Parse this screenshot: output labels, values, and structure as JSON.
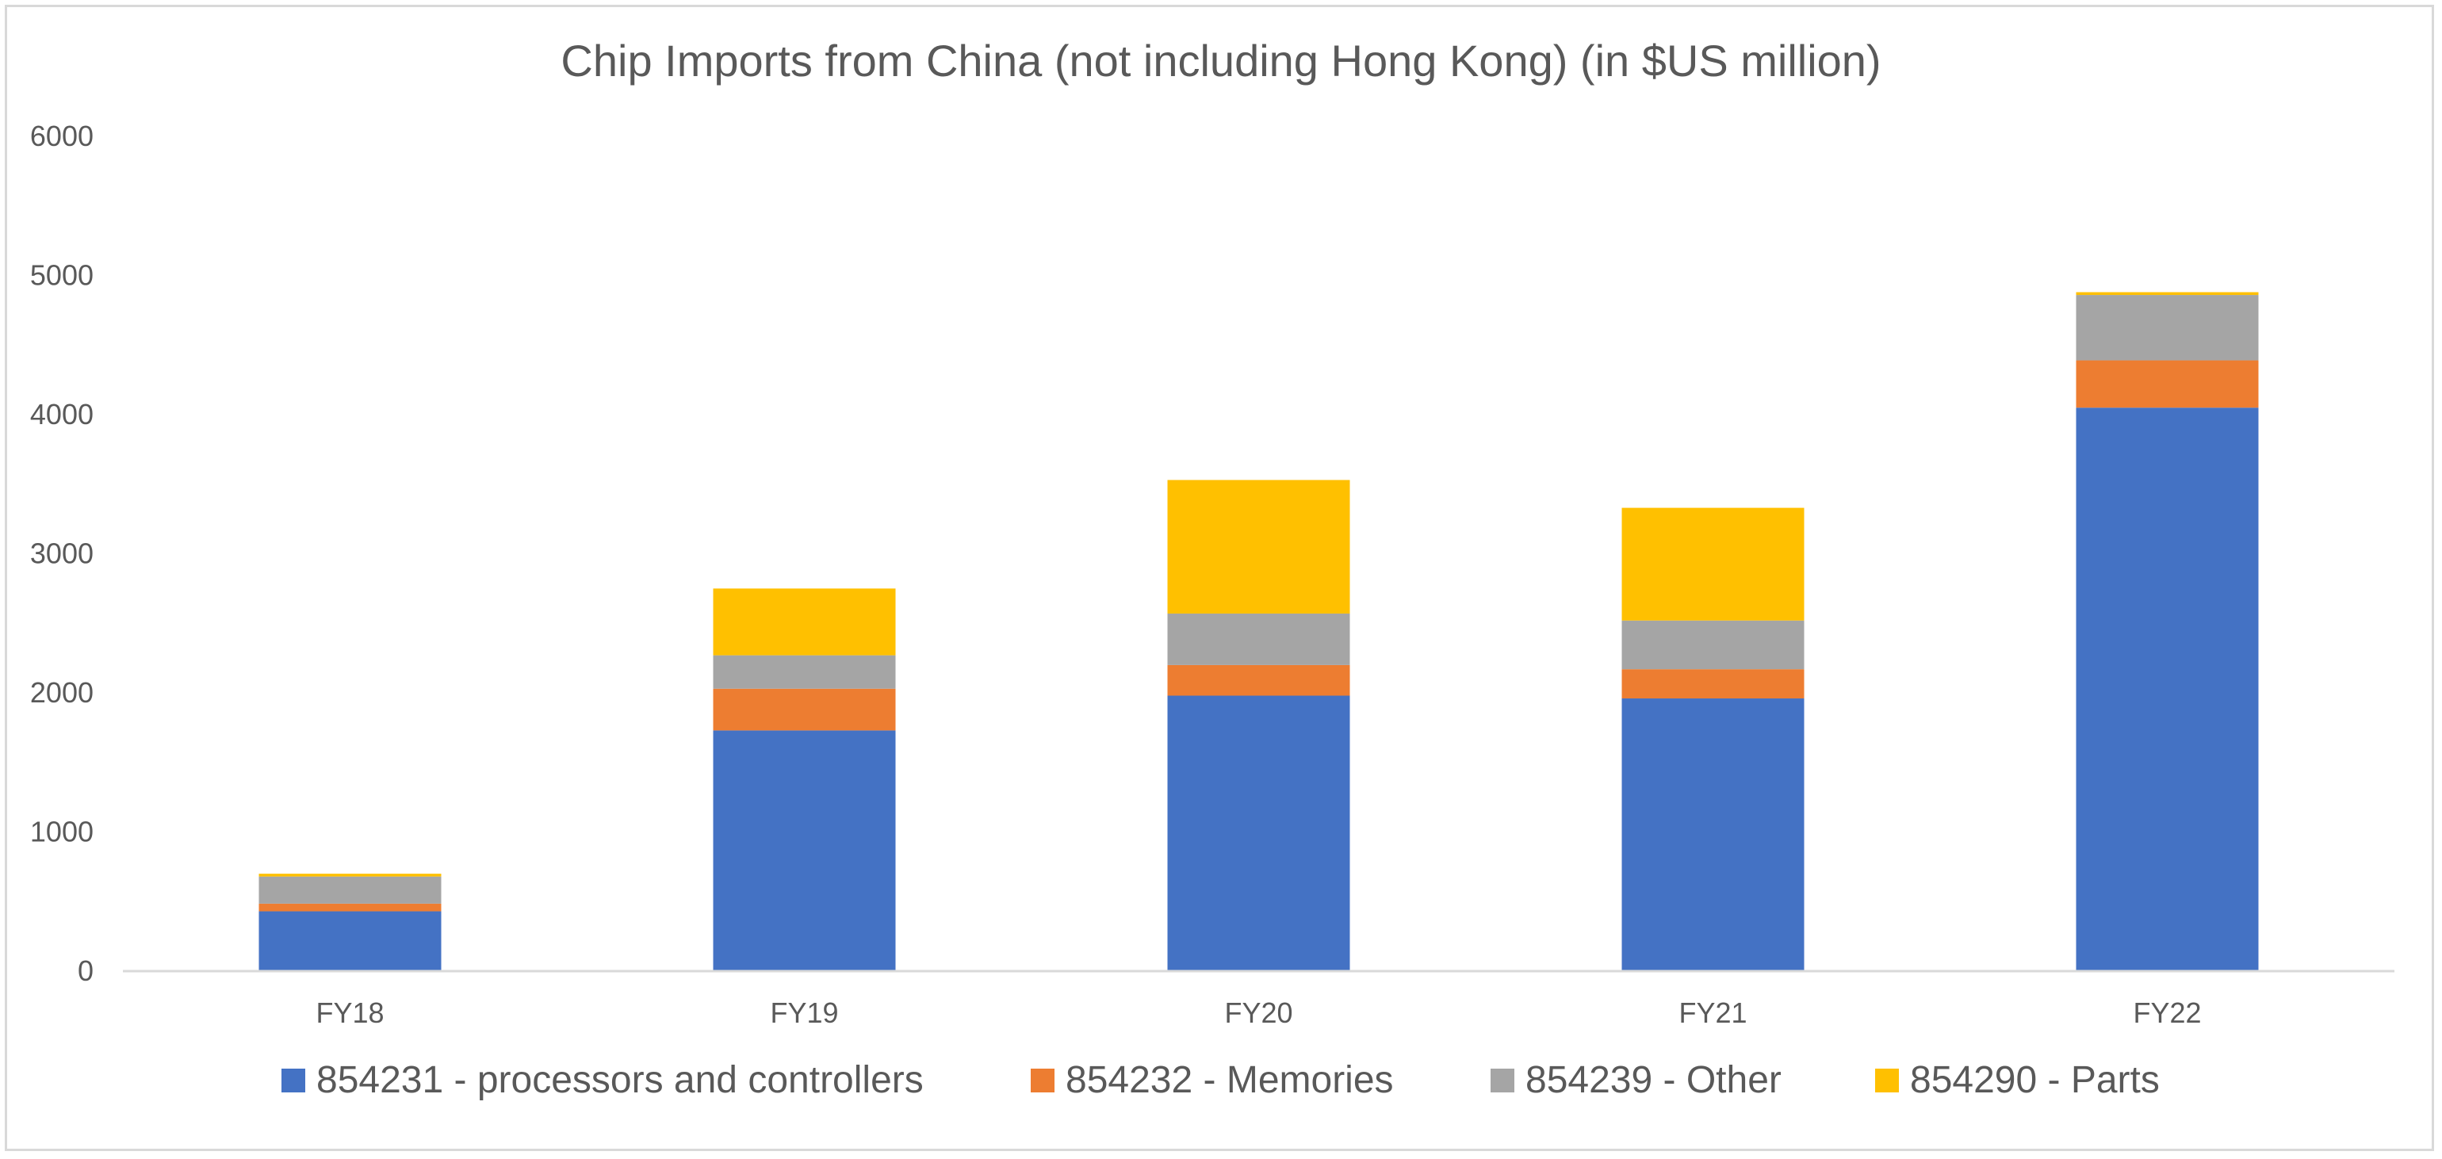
{
  "chart_data": {
    "type": "bar",
    "stacked": true,
    "title": "Chip Imports from China (not including Hong Kong) (in $US million)",
    "xlabel": "",
    "ylabel": "",
    "categories": [
      "FY18",
      "FY19",
      "FY20",
      "FY21",
      "FY22"
    ],
    "ylim": [
      0,
      6000
    ],
    "yticks": [
      0,
      1000,
      2000,
      3000,
      4000,
      5000,
      6000
    ],
    "grid": false,
    "legend_position": "bottom",
    "series": [
      {
        "name": "854231 - processors and controllers",
        "color": "#4472C4",
        "values": [
          430,
          1730,
          1980,
          1960,
          4050
        ]
      },
      {
        "name": "854232 - Memories",
        "color": "#ED7D31",
        "values": [
          55,
          300,
          220,
          210,
          340
        ]
      },
      {
        "name": "854239 - Other",
        "color": "#A5A5A5",
        "values": [
          195,
          240,
          370,
          350,
          470
        ]
      },
      {
        "name": "854290 - Parts",
        "color": "#FFC000",
        "values": [
          20,
          480,
          960,
          810,
          20
        ]
      }
    ]
  }
}
